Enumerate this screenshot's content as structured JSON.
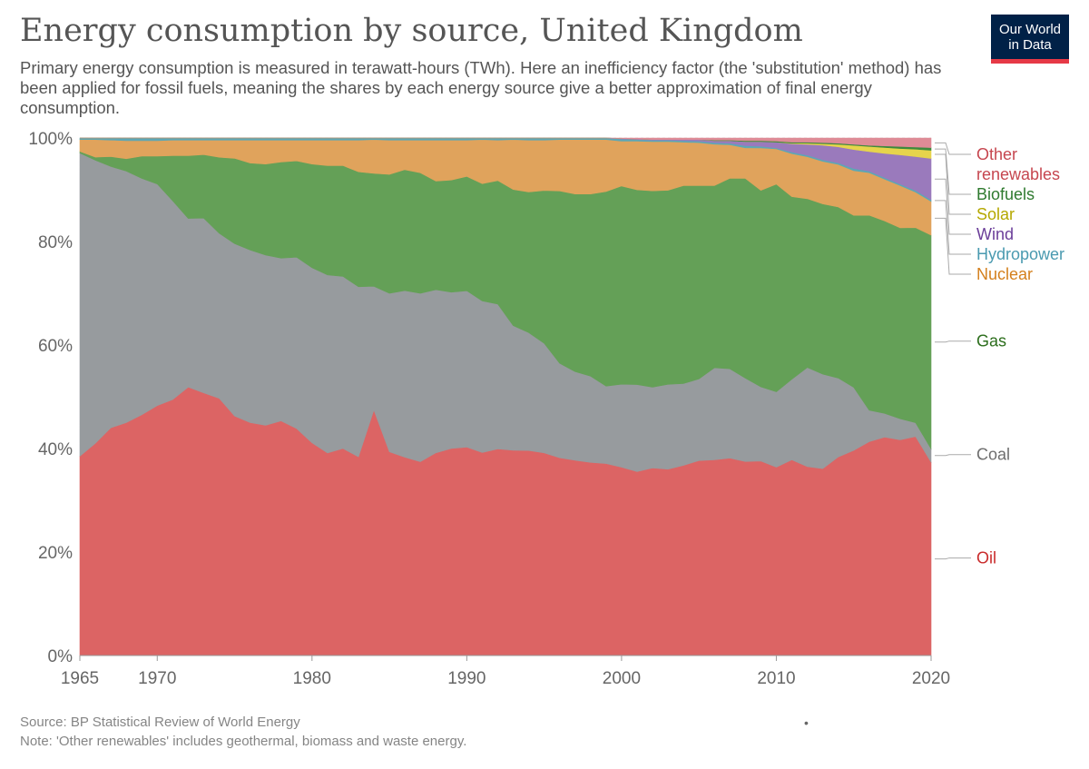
{
  "header": {
    "title": "Energy consumption by source, United Kingdom",
    "subtitle": "Primary energy consumption is measured in terawatt-hours (TWh). Here an inefficiency factor (the 'substitution' method) has been applied for fossil fuels, meaning the shares by each energy source give a better approximation of final energy consumption."
  },
  "logo": {
    "line1": "Our World",
    "line2": "in Data"
  },
  "footer": {
    "source": "Source: BP Statistical Review of World Energy",
    "note": "Note: 'Other renewables' includes geothermal, biomass and waste energy.",
    "dot": "•"
  },
  "chart_data": {
    "type": "area",
    "stacked": true,
    "normalized": true,
    "xlim": [
      1965,
      2020
    ],
    "ylim": [
      0,
      100
    ],
    "x_ticks": [
      1965,
      1970,
      1980,
      1990,
      2000,
      2010,
      2020
    ],
    "y_ticks": [
      0,
      20,
      40,
      60,
      80,
      100
    ],
    "y_tick_labels": [
      "0%",
      "20%",
      "40%",
      "60%",
      "80%",
      "100%"
    ],
    "legend_placement": "right, labels at series ends",
    "x": [
      1965,
      1966,
      1967,
      1968,
      1969,
      1970,
      1971,
      1972,
      1973,
      1974,
      1975,
      1976,
      1977,
      1978,
      1979,
      1980,
      1981,
      1982,
      1983,
      1984,
      1985,
      1986,
      1987,
      1988,
      1989,
      1990,
      1991,
      1992,
      1993,
      1994,
      1995,
      1996,
      1997,
      1998,
      1999,
      2000,
      2001,
      2002,
      2003,
      2004,
      2005,
      2006,
      2007,
      2008,
      2009,
      2010,
      2011,
      2012,
      2013,
      2014,
      2015,
      2016,
      2017,
      2018,
      2019,
      2020
    ],
    "series": [
      {
        "name": "Oil",
        "color": "#dc6464",
        "values": [
          38.5,
          41,
          44,
          45,
          46.5,
          48.3,
          49.3,
          51.7,
          50.5,
          49.4,
          46,
          44.7,
          44.2,
          45.1,
          43.6,
          40.8,
          38.9,
          39.8,
          38.2,
          47.2,
          39.2,
          38.2,
          37.3,
          39,
          39.9,
          40.1,
          39.1,
          39.8,
          39.5,
          39.5,
          39,
          38.1,
          37.6,
          37.2,
          36.9,
          36.1,
          35.5,
          36.2,
          36,
          36.7,
          37.7,
          37.8,
          37.8,
          37.5,
          37.5,
          36.3,
          37.7,
          36.4,
          36,
          38.3,
          39,
          40.7,
          41.3,
          40.8,
          41.3,
          36
        ]
      },
      {
        "name": "Coal",
        "color": "#979b9e",
        "values": [
          58.6,
          54.7,
          50.5,
          48.6,
          45.7,
          42.8,
          38.3,
          32.5,
          33.6,
          31.7,
          33.1,
          33.1,
          32.7,
          31.3,
          32.9,
          33.6,
          34.2,
          33.1,
          32.7,
          23.8,
          30.5,
          32.1,
          32.4,
          31.4,
          30.1,
          30.1,
          29.2,
          27.9,
          24,
          22.7,
          21.1,
          18.2,
          17.1,
          16.6,
          14.9,
          15.9,
          16.8,
          15.6,
          16.4,
          15.8,
          15.8,
          17.8,
          17.1,
          16.1,
          14.3,
          14.5,
          15.5,
          19.1,
          18.2,
          15.2,
          12,
          6,
          4.5,
          4,
          2.6,
          2.5
        ]
      },
      {
        "name": "Gas",
        "color": "#64a057",
        "values": [
          0.3,
          0.6,
          1.9,
          2.4,
          4.3,
          5.4,
          8.7,
          12.1,
          12.2,
          14.6,
          16.4,
          16.7,
          17.5,
          18.5,
          18.5,
          19.9,
          21,
          21.3,
          22.1,
          21.7,
          22.9,
          23.3,
          23.2,
          20.9,
          21.6,
          22,
          22.6,
          23.8,
          26.2,
          27.1,
          29.4,
          33.2,
          34.2,
          35.1,
          37.4,
          38,
          37.6,
          37.9,
          37.5,
          38.2,
          37.4,
          35.2,
          36.5,
          38.6,
          37.9,
          40,
          35.2,
          32.5,
          32.8,
          33,
          32.7,
          37.1,
          36.4,
          36.1,
          36.8,
          39.8
        ]
      },
      {
        "name": "Nuclear",
        "color": "#e0a35c",
        "values": [
          2.3,
          3.4,
          3.2,
          3.5,
          3,
          3,
          3,
          3,
          2.8,
          3.3,
          3.5,
          4.4,
          4.6,
          4.2,
          4,
          4.6,
          4.9,
          4.9,
          6.1,
          6.5,
          6.6,
          5.7,
          6.3,
          7.9,
          7.7,
          7,
          8.5,
          7.8,
          9.6,
          10,
          9.7,
          9.9,
          10.5,
          10.5,
          10,
          8.6,
          9.4,
          9.5,
          9.4,
          8.4,
          8.3,
          8,
          6.4,
          5.9,
          8.2,
          6.8,
          8.3,
          8.1,
          8.2,
          8.2,
          8.5,
          8.1,
          7.9,
          8,
          6.7,
          6.3
        ]
      },
      {
        "name": "Hydropower",
        "color": "#5da7b5",
        "values": [
          0.3,
          0.3,
          0.4,
          0.5,
          0.5,
          0.5,
          0.4,
          0.4,
          0.4,
          0.4,
          0.4,
          0.4,
          0.4,
          0.4,
          0.4,
          0.4,
          0.4,
          0.4,
          0.4,
          0.3,
          0.4,
          0.4,
          0.4,
          0.4,
          0.4,
          0.4,
          0.3,
          0.4,
          0.3,
          0.4,
          0.4,
          0.3,
          0.3,
          0.3,
          0.3,
          0.4,
          0.3,
          0.3,
          0.3,
          0.3,
          0.3,
          0.3,
          0.3,
          0.4,
          0.3,
          0.2,
          0.3,
          0.3,
          0.3,
          0.3,
          0.4,
          0.3,
          0.3,
          0.3,
          0.3,
          0.3
        ]
      },
      {
        "name": "Wind",
        "color": "#9a7abc",
        "values": [
          0,
          0,
          0,
          0,
          0,
          0,
          0,
          0,
          0,
          0,
          0,
          0,
          0,
          0,
          0,
          0,
          0,
          0,
          0,
          0,
          0,
          0,
          0,
          0,
          0,
          0,
          0,
          0,
          0,
          0,
          0,
          0,
          0,
          0,
          0,
          0.1,
          0.1,
          0.1,
          0.1,
          0.2,
          0.3,
          0.4,
          0.5,
          0.8,
          0.9,
          1.1,
          1.6,
          2.1,
          2.8,
          3.1,
          3.6,
          3.7,
          4.6,
          5.5,
          6.4,
          7.7
        ]
      },
      {
        "name": "Solar",
        "color": "#e6d44c",
        "values": [
          0,
          0,
          0,
          0,
          0,
          0,
          0,
          0,
          0,
          0,
          0,
          0,
          0,
          0,
          0,
          0,
          0,
          0,
          0,
          0,
          0,
          0,
          0,
          0,
          0,
          0,
          0,
          0,
          0,
          0,
          0,
          0,
          0,
          0,
          0,
          0,
          0,
          0,
          0,
          0,
          0,
          0,
          0,
          0,
          0,
          0,
          0.1,
          0.2,
          0.3,
          0.5,
          0.8,
          1,
          1.1,
          1.2,
          1.4,
          1.5
        ]
      },
      {
        "name": "Biofuels",
        "color": "#3d8a3d",
        "values": [
          0,
          0,
          0,
          0,
          0,
          0,
          0,
          0,
          0,
          0,
          0,
          0,
          0,
          0,
          0,
          0,
          0,
          0,
          0,
          0,
          0,
          0,
          0,
          0,
          0,
          0,
          0,
          0,
          0,
          0,
          0,
          0,
          0,
          0,
          0,
          0,
          0,
          0,
          0,
          0,
          0,
          0.1,
          0.1,
          0.2,
          0.2,
          0.2,
          0.2,
          0.2,
          0.2,
          0.2,
          0.2,
          0.2,
          0.3,
          0.4,
          0.4,
          0.5
        ]
      },
      {
        "name": "Other renewables",
        "color": "#de8b96",
        "values": [
          0,
          0,
          0,
          0,
          0,
          0,
          0,
          0,
          0,
          0,
          0,
          0,
          0,
          0,
          0,
          0,
          0,
          0,
          0,
          0,
          0,
          0,
          0,
          0,
          0,
          0,
          0,
          0,
          0,
          0,
          0,
          0,
          0,
          0,
          0,
          0.1,
          0.2,
          0.3,
          0.3,
          0.3,
          0.3,
          0.4,
          0.4,
          0.5,
          0.5,
          0.6,
          0.8,
          0.8,
          0.9,
          1,
          1.2,
          1.4,
          1.5,
          1.6,
          1.7,
          1.8
        ]
      }
    ],
    "labels": [
      {
        "series": "Other renewables",
        "lines": [
          "Other",
          "renewables"
        ],
        "color": "#c6464f"
      },
      {
        "series": "Biofuels",
        "lines": [
          "Biofuels"
        ],
        "color": "#2f7a2f"
      },
      {
        "series": "Solar",
        "lines": [
          "Solar"
        ],
        "color": "#b5a800"
      },
      {
        "series": "Wind",
        "lines": [
          "Wind"
        ],
        "color": "#6b3e99"
      },
      {
        "series": "Hydropower",
        "lines": [
          "Hydropower"
        ],
        "color": "#4a9ab0"
      },
      {
        "series": "Nuclear",
        "lines": [
          "Nuclear"
        ],
        "color": "#d4801d"
      },
      {
        "series": "Gas",
        "lines": [
          "Gas"
        ],
        "color": "#2c6e1c"
      },
      {
        "series": "Coal",
        "lines": [
          "Coal"
        ],
        "color": "#6e6e6e"
      },
      {
        "series": "Oil",
        "lines": [
          "Oil"
        ],
        "color": "#c92a2a"
      }
    ]
  }
}
